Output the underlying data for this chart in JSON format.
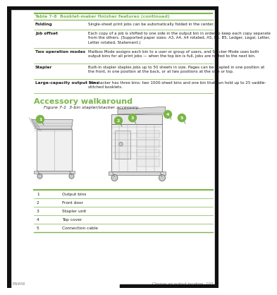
{
  "bg_color": "#ffffff",
  "page_bg": "#f5f5f5",
  "green_color": "#7ab648",
  "text_color": "#231f20",
  "gray_text": "#808080",
  "border_color": "#000000",
  "table_header_text": "Table 7-8  Booklet-maker finisher features (continued)",
  "table_rows": [
    {
      "label": "Folding",
      "content": "Single-sheet print jobs can be automatically folded in the center."
    },
    {
      "label": "Job offset",
      "content": "Each copy of a job is shifted to one side in the output bin in order to keep each copy separate\nfrom the others. (Supported paper sizes: A3, A4, A4 rotated, A5, B4, B5, Ledger, Legal, Letter,\nLetter rotated, Statement.)"
    },
    {
      "label": "Two operation modes",
      "content": "Mailbox Mode assigns each bin to a user or group of users, and Stacker Mode uses both\noutput bins for all print jobs — when the top bin is full, jobs are routed to the next bin."
    },
    {
      "label": "Stapler",
      "content": "Built-in stapler staples jobs up to 50 sheets in size. Pages can be stapled in one position at\nthe front, in one position at the back, or at two positions at the side or top."
    },
    {
      "label": "Large-capacity output bins",
      "content": "The stacker has three bins: two 1000-sheet bins and one bin that can hold up to 25 saddle-\nstitched booklets."
    }
  ],
  "section_title": "Accessory walkaround",
  "figure_caption": "Figure 7-1  3-bin stapler/stacker accessory",
  "legend_rows": [
    {
      "num": "1",
      "label": "Output bins"
    },
    {
      "num": "2",
      "label": "Front door"
    },
    {
      "num": "3",
      "label": "Stapler unit"
    },
    {
      "num": "4",
      "label": "Top cover"
    },
    {
      "num": "5",
      "label": "Connection cable"
    }
  ],
  "footer_left": "ENWW",
  "footer_right": "Choose an output location  103"
}
